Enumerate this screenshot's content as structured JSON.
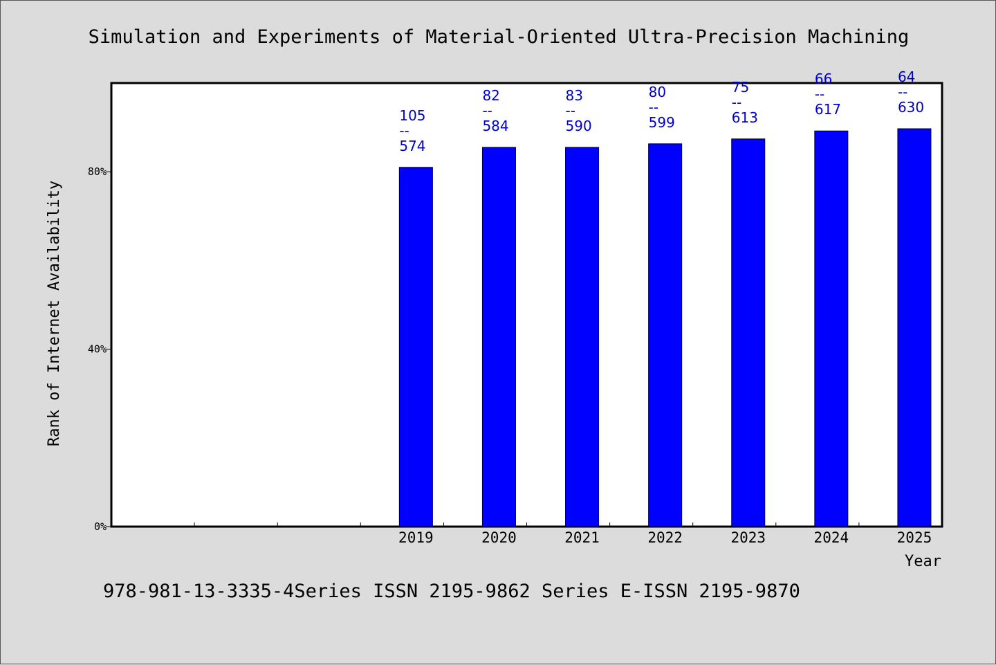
{
  "colors": {
    "bar": "#0000ff",
    "label": "#0000cc",
    "plot_bg": "#ffffff",
    "page_bg": "#dcdcdc"
  },
  "chart_data": {
    "type": "bar",
    "title": "Simulation and Experiments of Material-Oriented Ultra-Precision Machining",
    "xlabel": "Year",
    "ylabel": "Rank of Internet Availability",
    "footer": "978-981-13-3335-4Series ISSN 2195-9862 Series E-ISSN 2195-9870",
    "categories": [
      "",
      "",
      "",
      "2019",
      "2020",
      "2021",
      "2022",
      "2023",
      "2024",
      "2025"
    ],
    "values": [
      null,
      null,
      null,
      81,
      85.5,
      85.5,
      86.3,
      87.4,
      89.2,
      89.7
    ],
    "labels_top": [
      "",
      "",
      "",
      "105",
      "82",
      "83",
      "80",
      "75",
      "66",
      "64"
    ],
    "labels_sep": "--",
    "labels_bottom": [
      "",
      "",
      "",
      "574",
      "584",
      "590",
      "599",
      "613",
      "617",
      "630"
    ],
    "ylim": [
      0,
      100
    ],
    "yticks": [
      0,
      40,
      80
    ],
    "ytick_labels": [
      "0%",
      "40%",
      "80%"
    ],
    "grid": false,
    "legend": "none"
  }
}
